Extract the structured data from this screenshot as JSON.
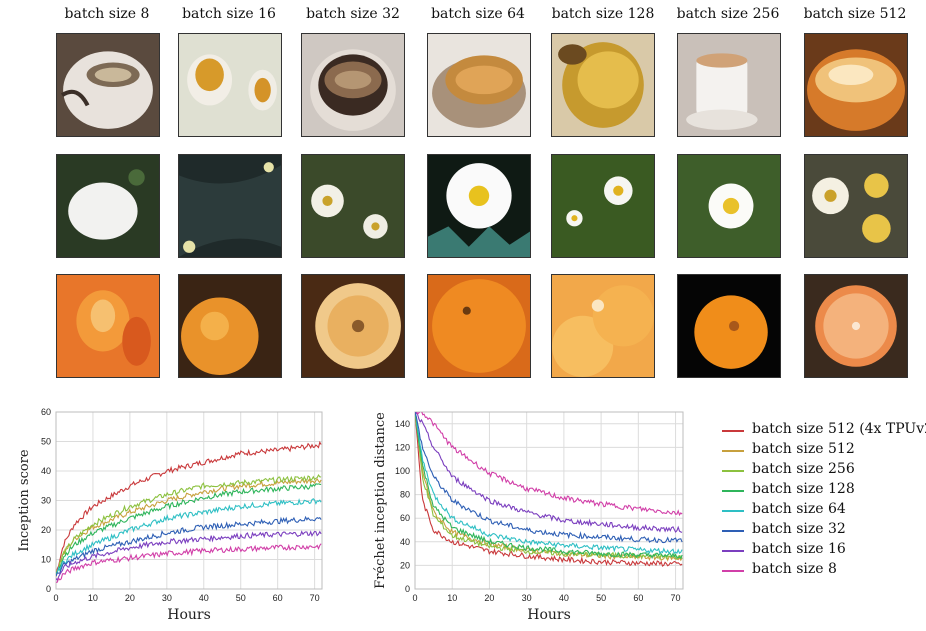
{
  "columns": [
    "batch size 8",
    "batch size 16",
    "batch size 32",
    "batch size 64",
    "batch size 128",
    "batch size 256",
    "batch size 512"
  ],
  "image_rows": [
    "espresso",
    "daisy",
    "orange"
  ],
  "chart_data": [
    {
      "type": "line",
      "xlabel": "Hours",
      "ylabel": "Inception score",
      "xlim": [
        0,
        72
      ],
      "ylim": [
        0,
        60
      ],
      "xticks": [
        0,
        10,
        20,
        30,
        40,
        50,
        60,
        70
      ],
      "yticks": [
        0,
        10,
        20,
        30,
        40,
        50,
        60
      ],
      "grid": true,
      "x": [
        0,
        2,
        5,
        10,
        20,
        30,
        40,
        50,
        60,
        72
      ],
      "series": [
        {
          "name": "batch size 512 (4x TPUv2)",
          "color": "#c9393b",
          "values": [
            5,
            15,
            22,
            28,
            35,
            40,
            43,
            46,
            47,
            49
          ]
        },
        {
          "name": "batch size 512",
          "color": "#c7a03d",
          "values": [
            5,
            12,
            17,
            21,
            26,
            30,
            33,
            35,
            36,
            37
          ]
        },
        {
          "name": "batch size 256",
          "color": "#8cc13f",
          "values": [
            5,
            12,
            17,
            22,
            28,
            32,
            35,
            36,
            37,
            38
          ]
        },
        {
          "name": "batch size 128",
          "color": "#2fb55b",
          "values": [
            5,
            11,
            15,
            19,
            24,
            28,
            31,
            33,
            34,
            35
          ]
        },
        {
          "name": "batch size 64",
          "color": "#2ebfc4",
          "values": [
            5,
            9,
            12,
            15,
            20,
            24,
            26,
            28,
            29,
            30
          ]
        },
        {
          "name": "batch size 32",
          "color": "#2e5fb5",
          "values": [
            4,
            8,
            10,
            13,
            16,
            19,
            21,
            22,
            23,
            24
          ]
        },
        {
          "name": "batch size 16",
          "color": "#7b3fbf",
          "values": [
            3,
            7,
            9,
            11,
            14,
            16,
            17,
            18,
            18.5,
            19
          ]
        },
        {
          "name": "batch size 8",
          "color": "#d13fa8",
          "values": [
            2,
            5,
            7,
            9,
            10.5,
            12,
            13,
            13.5,
            14,
            14.5
          ]
        }
      ]
    },
    {
      "type": "line",
      "xlabel": "Hours",
      "ylabel": "Fréchet inception distance",
      "xlim": [
        0,
        72
      ],
      "ylim": [
        0,
        150
      ],
      "xticks": [
        0,
        10,
        20,
        30,
        40,
        50,
        60,
        70
      ],
      "yticks": [
        0,
        20,
        40,
        60,
        80,
        100,
        120,
        140
      ],
      "grid": true,
      "x": [
        0,
        2,
        5,
        10,
        20,
        30,
        40,
        50,
        60,
        72
      ],
      "series": [
        {
          "name": "batch size 512 (4x TPUv2)",
          "color": "#c9393b",
          "values": [
            150,
            75,
            50,
            40,
            32,
            28,
            25,
            23,
            22,
            21
          ]
        },
        {
          "name": "batch size 512",
          "color": "#c7a03d",
          "values": [
            150,
            100,
            65,
            48,
            38,
            33,
            30,
            28,
            27,
            26
          ]
        },
        {
          "name": "batch size 256",
          "color": "#8cc13f",
          "values": [
            150,
            95,
            62,
            45,
            36,
            32,
            30,
            29,
            28,
            27
          ]
        },
        {
          "name": "batch size 128",
          "color": "#2fb55b",
          "values": [
            150,
            105,
            70,
            52,
            40,
            35,
            32,
            30,
            29,
            28
          ]
        },
        {
          "name": "batch size 64",
          "color": "#2ebfc4",
          "values": [
            150,
            110,
            80,
            60,
            46,
            40,
            37,
            35,
            33,
            32
          ]
        },
        {
          "name": "batch size 32",
          "color": "#2e5fb5",
          "values": [
            150,
            120,
            95,
            75,
            58,
            50,
            46,
            44,
            42,
            41
          ]
        },
        {
          "name": "batch size 16",
          "color": "#7b3fbf",
          "values": [
            150,
            140,
            120,
            95,
            75,
            65,
            58,
            55,
            52,
            50
          ]
        },
        {
          "name": "batch size 8",
          "color": "#d13fa8",
          "values": [
            150,
            150,
            140,
            120,
            98,
            85,
            77,
            72,
            68,
            64
          ]
        }
      ]
    }
  ],
  "legend": {
    "placement": "right",
    "items": [
      {
        "label": "batch size 512 (4x TPUv2)",
        "color": "#c9393b"
      },
      {
        "label": "batch size 512",
        "color": "#c7a03d"
      },
      {
        "label": "batch size 256",
        "color": "#8cc13f"
      },
      {
        "label": "batch size 128",
        "color": "#2fb55b"
      },
      {
        "label": "batch size 64",
        "color": "#2ebfc4"
      },
      {
        "label": "batch size 32",
        "color": "#2e5fb5"
      },
      {
        "label": "batch size 16",
        "color": "#7b3fbf"
      },
      {
        "label": "batch size 8",
        "color": "#d13fa8"
      }
    ]
  }
}
